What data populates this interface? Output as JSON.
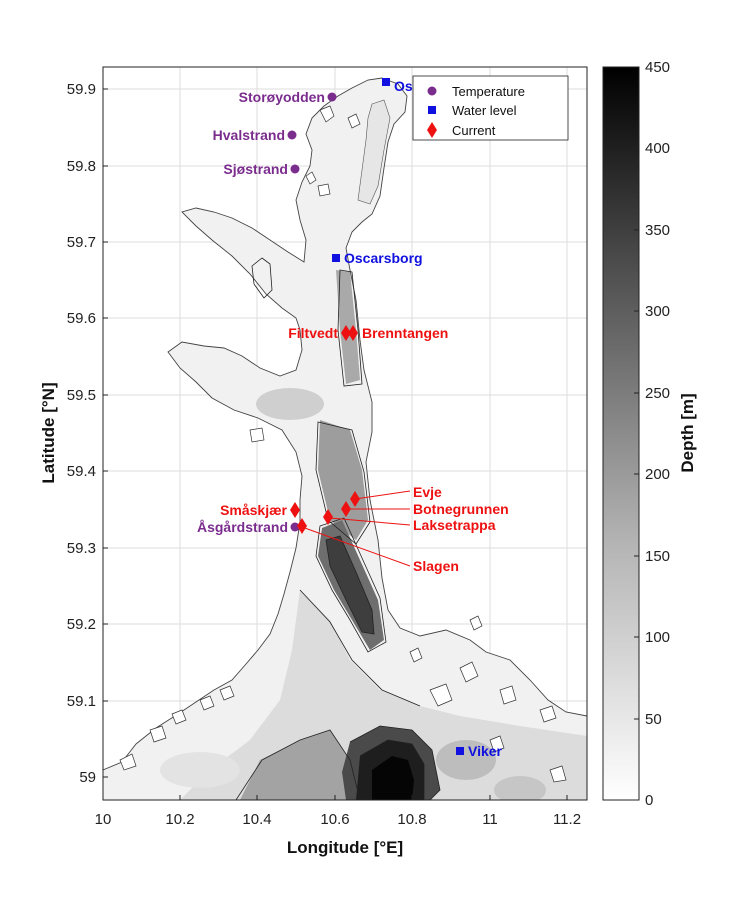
{
  "map": {
    "xlabel": "Longitude [°E]",
    "ylabel": "Latitude [°N]",
    "xlim": [
      10.0,
      11.25
    ],
    "ylim": [
      58.97,
      59.93
    ],
    "xticks": [
      "10",
      "10.2",
      "10.4",
      "10.6",
      "10.8",
      "11",
      "11.2"
    ],
    "yticks": [
      "59",
      "59.1",
      "59.2",
      "59.3",
      "59.4",
      "59.5",
      "59.6",
      "59.7",
      "59.8",
      "59.9"
    ],
    "grid": true,
    "colors": {
      "temperature": "#7b2d8e",
      "water_level": "#1010e0",
      "current": "#ee1111"
    }
  },
  "legend": {
    "position": "top-right",
    "items": [
      {
        "label": "Temperature",
        "marker": "circle",
        "color": "#7b2d8e"
      },
      {
        "label": "Water level",
        "marker": "square",
        "color": "#1010e0"
      },
      {
        "label": "Current",
        "marker": "diamond",
        "color": "#ee1111"
      }
    ]
  },
  "colorbar": {
    "label": "Depth [m]",
    "range": [
      0,
      450
    ],
    "ticks": [
      "0",
      "50",
      "100",
      "150",
      "200",
      "250",
      "300",
      "350",
      "400",
      "450"
    ],
    "colormap": "white-to-black"
  },
  "stations": {
    "temperature": [
      {
        "name": "Storøyodden",
        "lon": 10.595,
        "lat": 59.893
      },
      {
        "name": "Hvalstrand",
        "lon": 10.49,
        "lat": 59.843
      },
      {
        "name": "Sjøstrand",
        "lon": 10.495,
        "lat": 59.797
      },
      {
        "name": "Åsgårdstrand",
        "lon": 10.495,
        "lat": 59.33
      }
    ],
    "water_level": [
      {
        "name": "Os",
        "lon": 10.73,
        "lat": 59.908
      },
      {
        "name": "Oscarsborg",
        "lon": 10.605,
        "lat": 59.68
      },
      {
        "name": "Viker",
        "lon": 10.93,
        "lat": 59.035
      }
    ],
    "current": [
      {
        "name": "Filtvedt",
        "lon": 10.635,
        "lat": 59.583
      },
      {
        "name": "Brenntangen",
        "lon": 10.645,
        "lat": 59.583
      },
      {
        "name": "Evje",
        "lon": 10.655,
        "lat": 59.365
      },
      {
        "name": "Botnegrunnen",
        "lon": 10.625,
        "lat": 59.353
      },
      {
        "name": "Laksetrappa",
        "lon": 10.58,
        "lat": 59.342
      },
      {
        "name": "Småskjær",
        "lon": 10.49,
        "lat": 59.352
      },
      {
        "name": "Slagen",
        "lon": 10.505,
        "lat": 59.332
      }
    ]
  }
}
